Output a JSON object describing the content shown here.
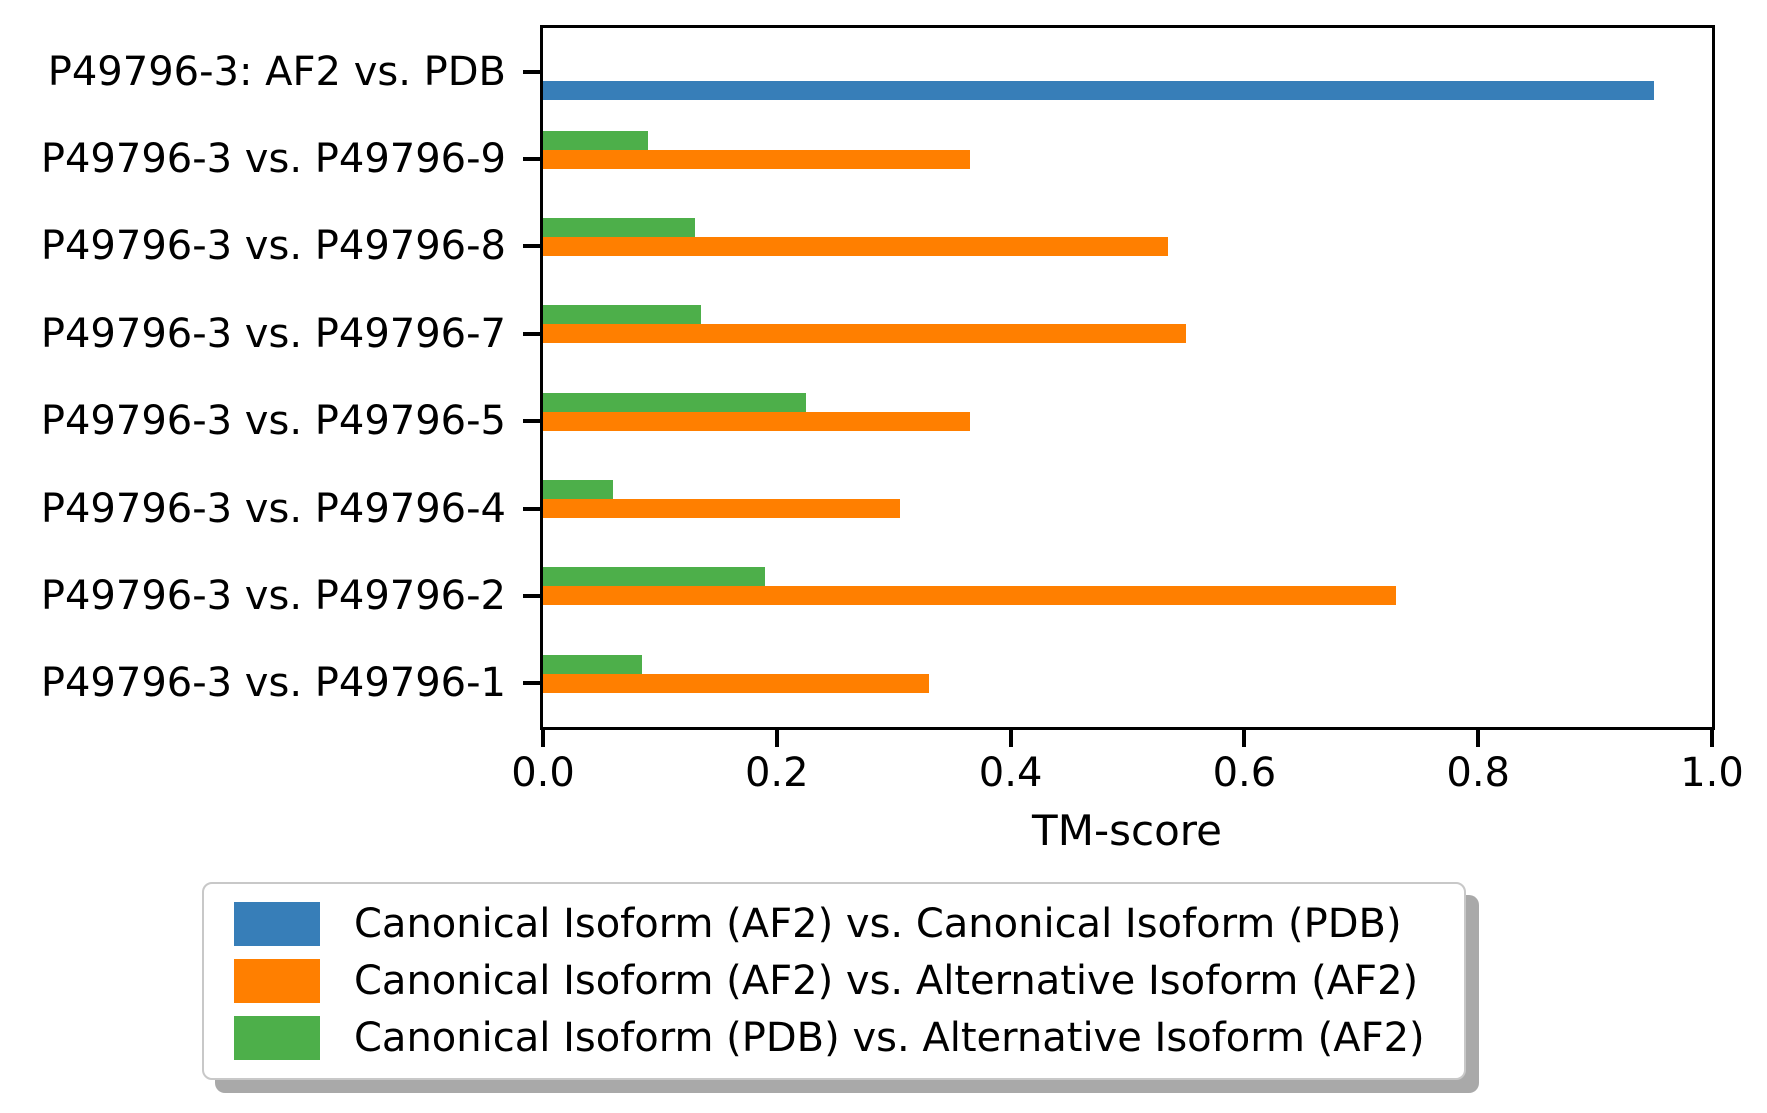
{
  "chart_data": {
    "type": "bar",
    "orientation": "horizontal",
    "title": "",
    "xlabel": "TM-score",
    "ylabel": "",
    "xlim": [
      0.0,
      1.0
    ],
    "xticks": [
      0.0,
      0.2,
      0.4,
      0.6,
      0.8,
      1.0
    ],
    "grid": false,
    "legend_position": "below-chart",
    "categories": [
      "P49796-3: AF2 vs. PDB",
      "P49796-3 vs. P49796-9",
      "P49796-3 vs. P49796-8",
      "P49796-3 vs. P49796-7",
      "P49796-3 vs. P49796-5",
      "P49796-3 vs. P49796-4",
      "P49796-3 vs. P49796-2",
      "P49796-3 vs. P49796-1"
    ],
    "series": [
      {
        "id": "canonical-af2-vs-canonical-pdb",
        "name": "Canonical Isoform (AF2) vs. Canonical Isoform (PDB)",
        "color": "#377eb8",
        "values": [
          0.95,
          null,
          null,
          null,
          null,
          null,
          null,
          null
        ]
      },
      {
        "id": "canonical-af2-vs-alternative-af2",
        "name": "Canonical Isoform (AF2) vs. Alternative Isoform (AF2)",
        "color": "#ff7f00",
        "values": [
          null,
          0.365,
          0.535,
          0.55,
          0.365,
          0.305,
          0.73,
          0.33
        ]
      },
      {
        "id": "canonical-pdb-vs-alternative-af2",
        "name": "Canonical Isoform (PDB) vs. Alternative Isoform (AF2)",
        "color": "#4daf4a",
        "values": [
          null,
          0.09,
          0.13,
          0.135,
          0.225,
          0.06,
          0.19,
          0.085
        ]
      }
    ]
  }
}
